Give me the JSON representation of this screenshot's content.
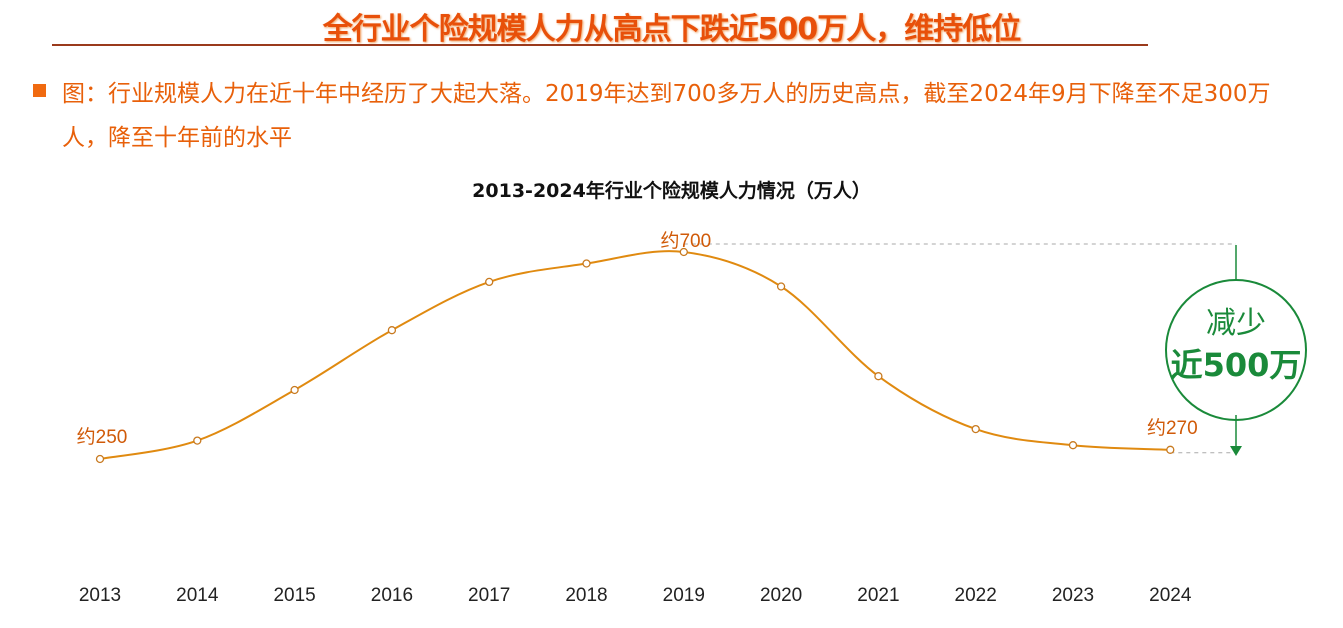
{
  "header": {
    "title": "全行业个险规模人力从高点下跌近500万人，维持低位",
    "description": "图：行业规模人力在近十年中经历了大起大落。2019年达到700多万人的历史高点，截至2024年9月下降至不足300万人，降至十年前的水平"
  },
  "chart_data": {
    "type": "line",
    "title": "2013-2024年行业个险规模人力情况（万人）",
    "categories": [
      "2013",
      "2014",
      "2015",
      "2016",
      "2017",
      "2018",
      "2019",
      "2020",
      "2021",
      "2022",
      "2023",
      "2024"
    ],
    "values": [
      250,
      290,
      400,
      530,
      635,
      675,
      700,
      625,
      430,
      315,
      280,
      270
    ],
    "annotations": [
      {
        "category": "2013",
        "text": "约250"
      },
      {
        "category": "2019",
        "text": "约700"
      },
      {
        "category": "2024",
        "text": "约270"
      }
    ],
    "callout": {
      "line1": "减少",
      "line2": "近500万"
    },
    "grid": false,
    "colors": {
      "line": "#e08a10",
      "marker": "#c87a20",
      "label": "#d05a08",
      "callout": "#1a8a3a"
    }
  }
}
